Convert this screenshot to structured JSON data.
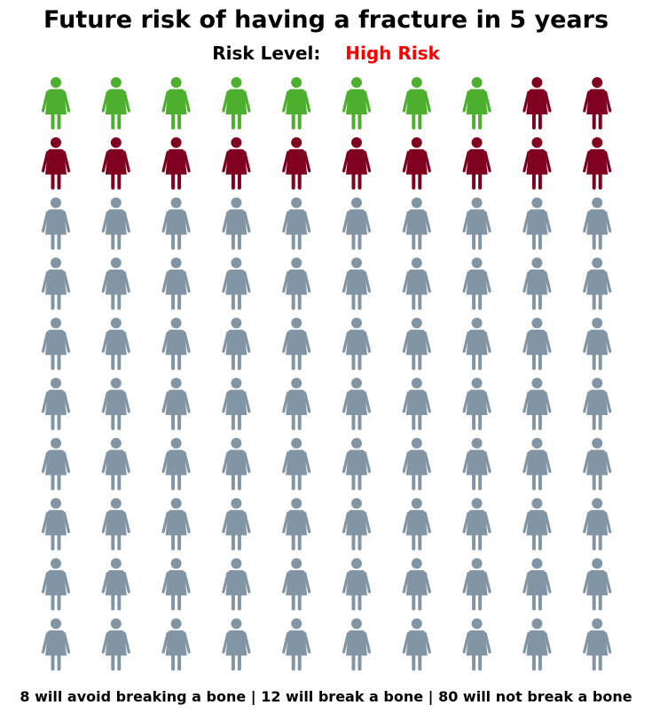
{
  "chart_data": {
    "type": "pictogram",
    "title": "Future risk of having a fracture in 5 years",
    "risk_label": "Risk Level:",
    "risk_value": "High Risk",
    "risk_color": "#ff0000",
    "rows": 10,
    "columns": 10,
    "total": 100,
    "icon": "woman-icon",
    "categories": [
      {
        "count": 8,
        "color": "#4daf2e"
      },
      {
        "count": 12,
        "color": "#800020"
      },
      {
        "count": 80,
        "color": "#8295a4"
      }
    ],
    "footer": "8 will avoid breaking a bone | 12 will break a bone | 80 will not break a bone"
  }
}
